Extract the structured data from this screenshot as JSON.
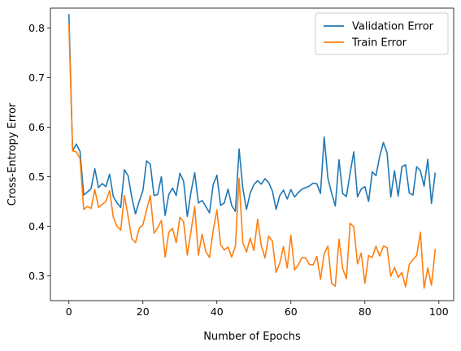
{
  "chart_data": {
    "type": "line",
    "title": "",
    "xlabel": "Number of Epochs",
    "ylabel": "Cross-Entropy Error",
    "xlim": [
      -5,
      104
    ],
    "ylim": [
      0.25,
      0.84
    ],
    "xticks": [
      0,
      20,
      40,
      60,
      80,
      100
    ],
    "yticks": [
      0.3,
      0.4,
      0.5,
      0.6,
      0.7,
      0.8
    ],
    "xtick_labels": [
      "0",
      "20",
      "40",
      "60",
      "80",
      "100"
    ],
    "ytick_labels": [
      "0.3",
      "0.4",
      "0.5",
      "0.6",
      "0.7",
      "0.8"
    ],
    "grid": false,
    "legend_position": "top-right",
    "series": [
      {
        "name": "Validation Error",
        "color": "#1f77b4",
        "values": [
          0.827,
          0.552,
          0.566,
          0.551,
          0.463,
          0.469,
          0.476,
          0.516,
          0.478,
          0.486,
          0.48,
          0.505,
          0.46,
          0.447,
          0.438,
          0.514,
          0.502,
          0.458,
          0.425,
          0.45,
          0.472,
          0.532,
          0.525,
          0.462,
          0.464,
          0.5,
          0.422,
          0.464,
          0.477,
          0.462,
          0.507,
          0.491,
          0.42,
          0.469,
          0.508,
          0.447,
          0.452,
          0.44,
          0.427,
          0.484,
          0.503,
          0.442,
          0.447,
          0.475,
          0.442,
          0.43,
          0.556,
          0.477,
          0.434,
          0.467,
          0.484,
          0.492,
          0.485,
          0.496,
          0.488,
          0.471,
          0.434,
          0.462,
          0.473,
          0.455,
          0.474,
          0.459,
          0.468,
          0.475,
          0.478,
          0.481,
          0.487,
          0.486,
          0.466,
          0.58,
          0.497,
          0.467,
          0.441,
          0.534,
          0.466,
          0.46,
          0.507,
          0.55,
          0.459,
          0.475,
          0.48,
          0.45,
          0.51,
          0.502,
          0.541,
          0.569,
          0.548,
          0.459,
          0.512,
          0.461,
          0.52,
          0.524,
          0.467,
          0.463,
          0.52,
          0.512,
          0.481,
          0.535,
          0.446,
          0.507
        ]
      },
      {
        "name": "Train Error",
        "color": "#ff7f0e",
        "values": [
          0.807,
          0.552,
          0.55,
          0.537,
          0.434,
          0.44,
          0.436,
          0.474,
          0.438,
          0.444,
          0.45,
          0.472,
          0.418,
          0.4,
          0.392,
          0.462,
          0.42,
          0.375,
          0.367,
          0.396,
          0.403,
          0.433,
          0.462,
          0.386,
          0.397,
          0.412,
          0.338,
          0.388,
          0.396,
          0.367,
          0.418,
          0.409,
          0.342,
          0.39,
          0.44,
          0.342,
          0.384,
          0.349,
          0.337,
          0.392,
          0.433,
          0.363,
          0.352,
          0.358,
          0.338,
          0.36,
          0.497,
          0.367,
          0.348,
          0.376,
          0.351,
          0.414,
          0.361,
          0.336,
          0.38,
          0.37,
          0.307,
          0.326,
          0.359,
          0.316,
          0.382,
          0.312,
          0.322,
          0.337,
          0.336,
          0.323,
          0.322,
          0.339,
          0.293,
          0.345,
          0.36,
          0.285,
          0.279,
          0.374,
          0.315,
          0.294,
          0.406,
          0.399,
          0.324,
          0.346,
          0.285,
          0.341,
          0.337,
          0.36,
          0.34,
          0.36,
          0.357,
          0.299,
          0.317,
          0.297,
          0.307,
          0.278,
          0.323,
          0.333,
          0.341,
          0.388,
          0.275,
          0.316,
          0.281,
          0.353
        ]
      }
    ]
  }
}
